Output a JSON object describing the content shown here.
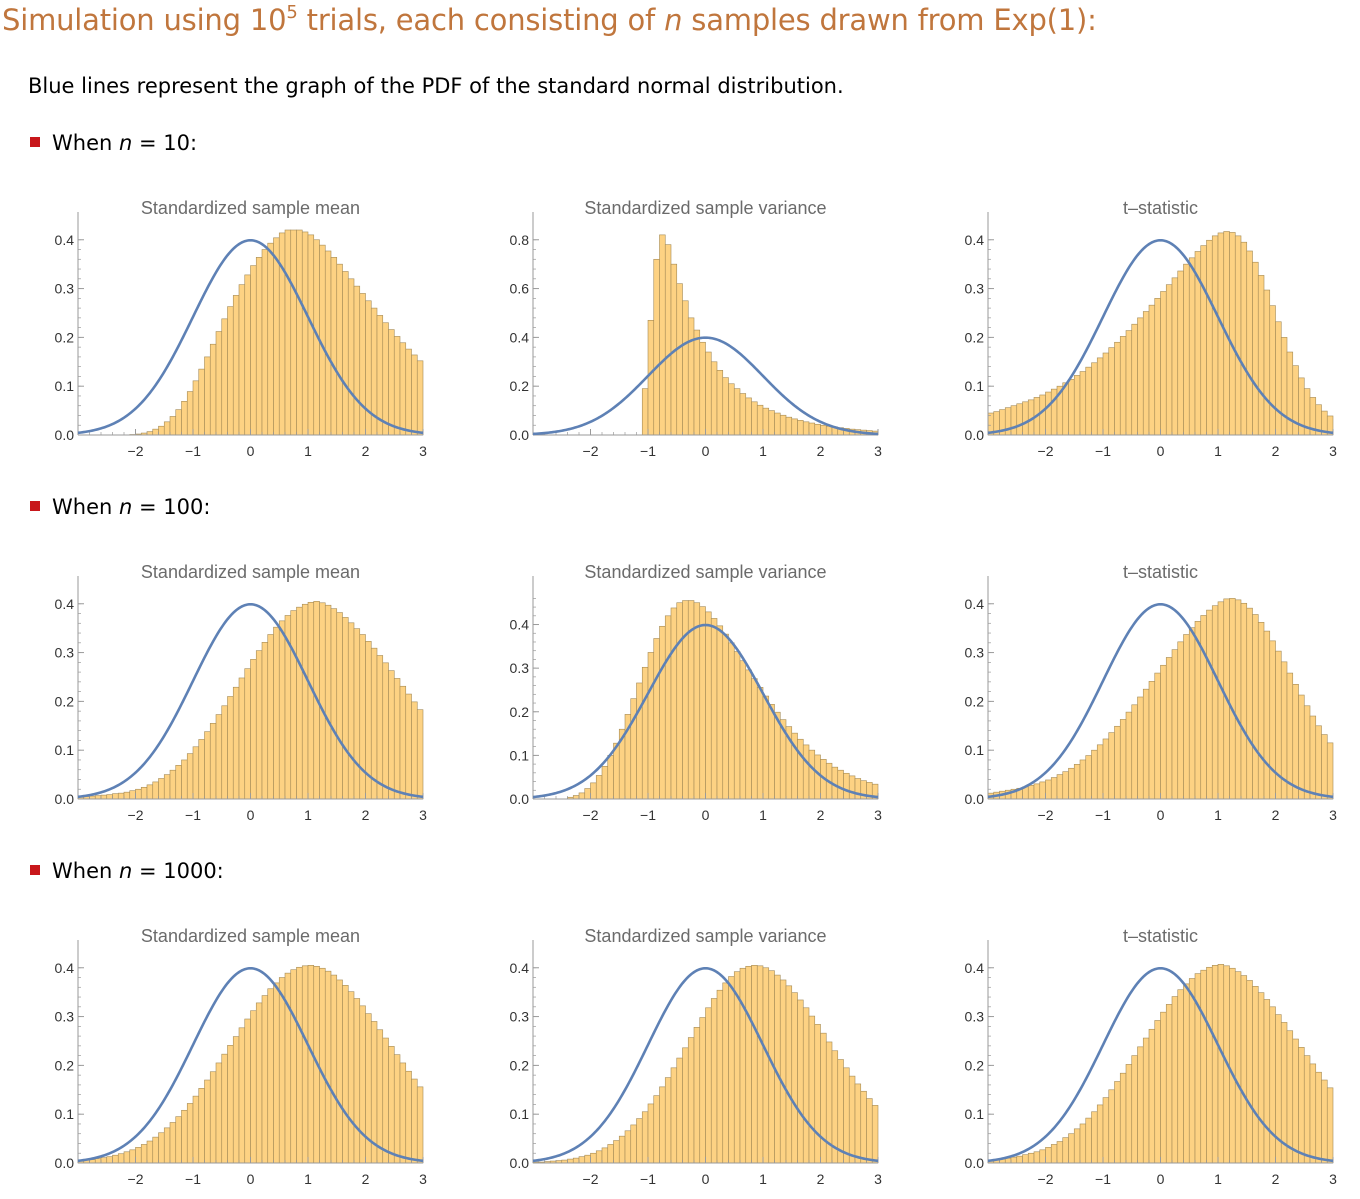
{
  "header": {
    "title_pre": "Simulation using 10",
    "title_sup": "5",
    "title_mid": " trials, each consisting of ",
    "title_var": "n",
    "title_post": " samples drawn from Exp(1):",
    "subtitle": "Blue lines represent the graph of the PDF of the standard normal distribution."
  },
  "sections": [
    {
      "pre": "When ",
      "var": "n",
      "post": " = 10:"
    },
    {
      "pre": "When ",
      "var": "n",
      "post": " = 100:"
    },
    {
      "pre": "When ",
      "var": "n",
      "post": " = 1000:"
    }
  ],
  "colors": {
    "bar_fill": "#fdd283",
    "bar_stroke": "#a48a55",
    "curve": "#5e81b5",
    "axis": "#9a9a9a",
    "bullet": "#c8171b",
    "title": "#c0763d"
  },
  "chart_data": [
    {
      "type": "bar",
      "title": "Standardized sample mean",
      "n": 10,
      "xlim": [
        -3,
        3
      ],
      "ylim": [
        0,
        0.42
      ],
      "yticks": [
        0,
        0.1,
        0.2,
        0.3,
        0.4
      ],
      "xticks": [
        -2,
        -1,
        0,
        1,
        2,
        3
      ],
      "bin_width": 0.1,
      "bin_start": -3.0,
      "values": [
        0,
        0,
        0,
        0,
        0,
        0,
        0,
        0,
        0,
        0.001,
        0.002,
        0.004,
        0.007,
        0.012,
        0.018,
        0.027,
        0.038,
        0.052,
        0.069,
        0.089,
        0.111,
        0.135,
        0.16,
        0.186,
        0.212,
        0.238,
        0.263,
        0.286,
        0.308,
        0.328,
        0.347,
        0.364,
        0.38,
        0.393,
        0.404,
        0.414,
        0.42,
        0.423,
        0.421,
        0.416,
        0.41,
        0.4,
        0.389,
        0.377,
        0.364,
        0.35,
        0.335,
        0.32,
        0.305,
        0.29,
        0.275,
        0.26,
        0.245,
        0.23,
        0.216,
        0.202,
        0.189,
        0.176,
        0.164,
        0.152,
        0.141,
        0.13,
        0.12,
        0.11,
        0.101,
        0.093,
        0.085,
        0.077,
        0.07,
        0.063,
        0.057,
        0.052,
        0.047,
        0.042,
        0.038,
        0.034,
        0.03,
        0.027,
        0.024,
        0.021,
        0.019,
        0.017,
        0.015,
        0.013,
        0.011,
        0.01,
        0.009,
        0.008,
        0.007,
        0.006
      ]
    },
    {
      "type": "bar",
      "title": "Standardized sample variance",
      "n": 10,
      "xlim": [
        -3,
        3
      ],
      "ylim": [
        0,
        0.84
      ],
      "yticks": [
        0,
        0.2,
        0.4,
        0.6,
        0.8
      ],
      "xticks": [
        -2,
        -1,
        0,
        1,
        2,
        3
      ],
      "bin_width": 0.1,
      "bin_start": -1.1,
      "values": [
        0.19,
        0.47,
        0.72,
        0.82,
        0.78,
        0.7,
        0.62,
        0.55,
        0.48,
        0.43,
        0.38,
        0.34,
        0.3,
        0.265,
        0.235,
        0.21,
        0.19,
        0.17,
        0.152,
        0.136,
        0.122,
        0.11,
        0.1,
        0.09,
        0.081,
        0.073,
        0.066,
        0.06,
        0.054,
        0.049,
        0.044,
        0.04,
        0.036,
        0.033,
        0.03,
        0.027,
        0.024,
        0.022,
        0.02,
        0.018,
        0.016,
        0.015
      ]
    },
    {
      "type": "bar",
      "title": "t–statistic",
      "n": 10,
      "xlim": [
        -3,
        3
      ],
      "ylim": [
        0,
        0.42
      ],
      "yticks": [
        0,
        0.1,
        0.2,
        0.3,
        0.4
      ],
      "xticks": [
        -2,
        -1,
        0,
        1,
        2,
        3
      ],
      "bin_width": 0.1,
      "bin_start": -3.0,
      "values": [
        0.045,
        0.048,
        0.052,
        0.056,
        0.06,
        0.064,
        0.068,
        0.072,
        0.077,
        0.082,
        0.088,
        0.094,
        0.1,
        0.107,
        0.114,
        0.122,
        0.13,
        0.139,
        0.148,
        0.158,
        0.168,
        0.179,
        0.19,
        0.202,
        0.214,
        0.227,
        0.24,
        0.253,
        0.266,
        0.28,
        0.294,
        0.308,
        0.322,
        0.336,
        0.35,
        0.363,
        0.376,
        0.388,
        0.399,
        0.408,
        0.414,
        0.417,
        0.415,
        0.408,
        0.395,
        0.377,
        0.354,
        0.327,
        0.297,
        0.265,
        0.232,
        0.2,
        0.17,
        0.142,
        0.117,
        0.095,
        0.077,
        0.062,
        0.049,
        0.039,
        0.031,
        0.024,
        0.019,
        0.015,
        0.012,
        0.009,
        0.007,
        0.005,
        0.004,
        0.003
      ]
    },
    {
      "type": "bar",
      "title": "Standardized sample mean",
      "n": 100,
      "xlim": [
        -3,
        3
      ],
      "ylim": [
        0,
        0.42
      ],
      "yticks": [
        0,
        0.1,
        0.2,
        0.3,
        0.4
      ],
      "xticks": [
        -2,
        -1,
        0,
        1,
        2,
        3
      ],
      "bin_width": 0.1,
      "bin_start": -3.0,
      "values": [
        0.004,
        0.005,
        0.006,
        0.007,
        0.008,
        0.009,
        0.011,
        0.012,
        0.014,
        0.017,
        0.02,
        0.024,
        0.029,
        0.035,
        0.042,
        0.05,
        0.059,
        0.069,
        0.08,
        0.093,
        0.107,
        0.122,
        0.138,
        0.155,
        0.173,
        0.191,
        0.21,
        0.229,
        0.248,
        0.267,
        0.286,
        0.304,
        0.321,
        0.337,
        0.352,
        0.365,
        0.376,
        0.386,
        0.393,
        0.399,
        0.403,
        0.405,
        0.402,
        0.397,
        0.39,
        0.382,
        0.372,
        0.361,
        0.349,
        0.337,
        0.323,
        0.309,
        0.294,
        0.279,
        0.263,
        0.247,
        0.231,
        0.215,
        0.199,
        0.183,
        0.168,
        0.153,
        0.139,
        0.125,
        0.112,
        0.099,
        0.088,
        0.077,
        0.067,
        0.058,
        0.05,
        0.043,
        0.037,
        0.031,
        0.026,
        0.022,
        0.018,
        0.015,
        0.012,
        0.01,
        0.008,
        0.006,
        0.005,
        0.004,
        0.003,
        0.002,
        0.002,
        0.001,
        0.001,
        0.001
      ]
    },
    {
      "type": "bar",
      "title": "Standardized sample variance",
      "n": 100,
      "xlim": [
        -3,
        3
      ],
      "ylim": [
        0,
        0.47
      ],
      "yticks": [
        0,
        0.1,
        0.2,
        0.3,
        0.4
      ],
      "xticks": [
        -2,
        -1,
        0,
        1,
        2,
        3
      ],
      "bin_width": 0.1,
      "bin_start": -2.4,
      "values": [
        0.004,
        0.008,
        0.014,
        0.024,
        0.037,
        0.054,
        0.075,
        0.1,
        0.128,
        0.16,
        0.194,
        0.23,
        0.266,
        0.302,
        0.336,
        0.368,
        0.396,
        0.42,
        0.438,
        0.45,
        0.455,
        0.455,
        0.45,
        0.441,
        0.429,
        0.414,
        0.397,
        0.378,
        0.358,
        0.338,
        0.317,
        0.296,
        0.276,
        0.256,
        0.236,
        0.217,
        0.199,
        0.182,
        0.166,
        0.151,
        0.137,
        0.124,
        0.112,
        0.101,
        0.091,
        0.082,
        0.073,
        0.066,
        0.059,
        0.053,
        0.047,
        0.042,
        0.038,
        0.034,
        0.03
      ]
    },
    {
      "type": "bar",
      "title": "t–statistic",
      "n": 100,
      "xlim": [
        -3,
        3
      ],
      "ylim": [
        0,
        0.42
      ],
      "yticks": [
        0,
        0.1,
        0.2,
        0.3,
        0.4
      ],
      "xticks": [
        -2,
        -1,
        0,
        1,
        2,
        3
      ],
      "bin_width": 0.1,
      "bin_start": -3.0,
      "values": [
        0.012,
        0.014,
        0.016,
        0.018,
        0.02,
        0.022,
        0.025,
        0.028,
        0.031,
        0.035,
        0.039,
        0.044,
        0.05,
        0.056,
        0.063,
        0.071,
        0.08,
        0.089,
        0.1,
        0.111,
        0.123,
        0.136,
        0.149,
        0.163,
        0.178,
        0.193,
        0.209,
        0.225,
        0.241,
        0.258,
        0.274,
        0.29,
        0.306,
        0.322,
        0.337,
        0.351,
        0.364,
        0.376,
        0.387,
        0.396,
        0.404,
        0.41,
        0.411,
        0.408,
        0.401,
        0.391,
        0.378,
        0.362,
        0.344,
        0.324,
        0.303,
        0.281,
        0.258,
        0.235,
        0.213,
        0.191,
        0.17,
        0.15,
        0.132,
        0.115,
        0.099,
        0.085,
        0.072,
        0.061,
        0.051,
        0.042,
        0.035,
        0.028,
        0.023,
        0.018,
        0.015,
        0.012,
        0.009,
        0.007,
        0.006,
        0.004,
        0.003,
        0.003,
        0.002,
        0.002,
        0.001,
        0.001,
        0.001,
        0.001,
        0.001,
        0,
        0,
        0,
        0,
        0
      ]
    },
    {
      "type": "bar",
      "title": "Standardized sample mean",
      "n": 1000,
      "xlim": [
        -3,
        3
      ],
      "ylim": [
        0,
        0.42
      ],
      "yticks": [
        0,
        0.1,
        0.2,
        0.3,
        0.4
      ],
      "xticks": [
        -2,
        -1,
        0,
        1,
        2,
        3
      ],
      "bin_width": 0.1,
      "bin_start": -3.0,
      "values": [
        0.005,
        0.006,
        0.007,
        0.009,
        0.011,
        0.013,
        0.016,
        0.019,
        0.023,
        0.027,
        0.032,
        0.038,
        0.045,
        0.053,
        0.062,
        0.072,
        0.083,
        0.095,
        0.108,
        0.122,
        0.137,
        0.153,
        0.17,
        0.187,
        0.205,
        0.223,
        0.241,
        0.259,
        0.277,
        0.295,
        0.312,
        0.328,
        0.343,
        0.357,
        0.369,
        0.38,
        0.389,
        0.396,
        0.401,
        0.404,
        0.405,
        0.403,
        0.399,
        0.393,
        0.385,
        0.375,
        0.364,
        0.351,
        0.337,
        0.322,
        0.306,
        0.29,
        0.273,
        0.256,
        0.239,
        0.222,
        0.205,
        0.188,
        0.172,
        0.156,
        0.141,
        0.127,
        0.113,
        0.1,
        0.088,
        0.077,
        0.067,
        0.058,
        0.05,
        0.042,
        0.036,
        0.03,
        0.025,
        0.021,
        0.017,
        0.014,
        0.011,
        0.009,
        0.007,
        0.005,
        0.004,
        0.003,
        0.002,
        0.002,
        0.001,
        0.001,
        0.001,
        0,
        0,
        0
      ]
    },
    {
      "type": "bar",
      "title": "Standardized sample variance",
      "n": 1000,
      "xlim": [
        -3,
        3
      ],
      "ylim": [
        0,
        0.42
      ],
      "yticks": [
        0,
        0.1,
        0.2,
        0.3,
        0.4
      ],
      "xticks": [
        -2,
        -1,
        0,
        1,
        2,
        3
      ],
      "bin_width": 0.1,
      "bin_start": -3.0,
      "values": [
        0.002,
        0.002,
        0.003,
        0.004,
        0.005,
        0.006,
        0.008,
        0.01,
        0.013,
        0.016,
        0.02,
        0.025,
        0.031,
        0.038,
        0.046,
        0.055,
        0.066,
        0.078,
        0.091,
        0.105,
        0.121,
        0.138,
        0.156,
        0.175,
        0.195,
        0.215,
        0.236,
        0.257,
        0.278,
        0.298,
        0.318,
        0.337,
        0.354,
        0.369,
        0.382,
        0.392,
        0.399,
        0.403,
        0.405,
        0.404,
        0.4,
        0.394,
        0.385,
        0.375,
        0.363,
        0.349,
        0.334,
        0.318,
        0.301,
        0.284,
        0.266,
        0.248,
        0.23,
        0.212,
        0.195,
        0.178,
        0.162,
        0.147,
        0.132,
        0.118,
        0.105,
        0.093,
        0.082,
        0.072,
        0.063,
        0.055,
        0.047,
        0.041,
        0.035,
        0.03,
        0.025,
        0.021,
        0.018,
        0.015,
        0.013,
        0.011,
        0.009,
        0.008,
        0.006,
        0.005,
        0.004,
        0.004,
        0.003,
        0.003,
        0.002,
        0.002,
        0.002,
        0.001,
        0.001,
        0.001
      ]
    },
    {
      "type": "bar",
      "title": "t–statistic",
      "n": 1000,
      "xlim": [
        -3,
        3
      ],
      "ylim": [
        0,
        0.42
      ],
      "yticks": [
        0,
        0.1,
        0.2,
        0.3,
        0.4
      ],
      "xticks": [
        -2,
        -1,
        0,
        1,
        2,
        3
      ],
      "bin_width": 0.1,
      "bin_start": -3.0,
      "values": [
        0.006,
        0.007,
        0.008,
        0.01,
        0.012,
        0.014,
        0.017,
        0.02,
        0.023,
        0.027,
        0.032,
        0.038,
        0.044,
        0.052,
        0.06,
        0.07,
        0.08,
        0.092,
        0.105,
        0.119,
        0.134,
        0.15,
        0.167,
        0.184,
        0.202,
        0.22,
        0.238,
        0.256,
        0.274,
        0.292,
        0.309,
        0.325,
        0.341,
        0.355,
        0.367,
        0.378,
        0.388,
        0.395,
        0.401,
        0.405,
        0.407,
        0.404,
        0.399,
        0.392,
        0.384,
        0.374,
        0.362,
        0.349,
        0.335,
        0.32,
        0.304,
        0.288,
        0.271,
        0.254,
        0.237,
        0.22,
        0.203,
        0.186,
        0.17,
        0.154,
        0.139,
        0.125,
        0.111,
        0.098,
        0.086,
        0.075,
        0.065,
        0.056,
        0.048,
        0.041,
        0.035,
        0.03,
        0.025,
        0.021,
        0.017,
        0.014,
        0.012,
        0.009,
        0.008,
        0.006,
        0.005,
        0.004,
        0.003,
        0.002,
        0.002,
        0.001,
        0.001,
        0.001,
        0,
        0
      ]
    }
  ]
}
